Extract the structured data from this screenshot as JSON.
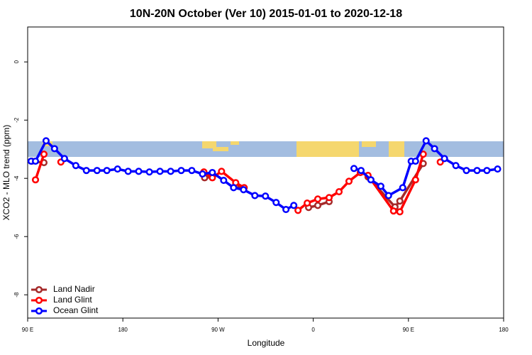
{
  "chart_data": {
    "type": "line",
    "title": "10N-20N October (Ver 10)   2015-01-01 to 2020-12-18",
    "xlabel": "Longitude",
    "ylabel": "XCO2 - MLO trend (ppm)",
    "xlim": [
      90,
      540
    ],
    "ylim": [
      -8.8,
      1.2
    ],
    "xticks": [
      {
        "value": 90,
        "label": "90 E"
      },
      180,
      {
        "value": 270,
        "label": "90 W"
      },
      {
        "value": 360,
        "label": "0"
      },
      {
        "value": 450,
        "label": "90 E"
      },
      {
        "value": 540,
        "label": "180"
      }
    ],
    "yticks": [
      -8,
      -6,
      -4,
      -2,
      0
    ],
    "legend": "bottom-left",
    "series": [
      {
        "name": "Land Nadir",
        "color": "#a52a2a",
        "x": [
          94,
          105.4,
          null,
          257.3,
          264.6,
          null,
          286.7,
          293.4,
          null,
          355.6,
          364.3,
          375,
          null,
          411.8,
          437.3,
          441.9,
          464
        ],
        "values": [
          -3.41,
          -3.46,
          null,
          -3.98,
          -3.95,
          null,
          -4.24,
          -4.34,
          null,
          -5.0,
          -4.93,
          -4.8,
          null,
          -3.95,
          -4.98,
          -4.78,
          -3.49
        ]
      },
      {
        "name": "Land Glint",
        "color": "#ff0000",
        "x": [
          97.4,
          105.4,
          null,
          121.4,
          null,
          256.6,
          264.6,
          273.3,
          286.7,
          294.7,
          null,
          345.6,
          354.3,
          364.3,
          375,
          384.4,
          393.8,
          404.5,
          411.8,
          435.9,
          441.9,
          456.7,
          464,
          null,
          480.1
        ],
        "values": [
          -4.05,
          -3.17,
          null,
          -3.44,
          null,
          -3.78,
          -3.98,
          -3.76,
          -4.15,
          -4.32,
          null,
          -5.1,
          -4.85,
          -4.71,
          -4.66,
          -4.46,
          -4.1,
          -3.8,
          -3.9,
          -5.12,
          -5.15,
          -4.05,
          -3.17,
          null,
          -3.44
        ]
      },
      {
        "name": "Ocean Glint",
        "color": "#0000ff",
        "x": [
          93.3,
          97.4,
          107.4,
          115.4,
          124.8,
          135.5,
          145.5,
          155.6,
          164.9,
          175,
          185,
          195,
          205.1,
          215.1,
          225.2,
          235.2,
          245.2,
          255.3,
          264.6,
          275.3,
          284.7,
          294.1,
          304.8,
          314.8,
          324.9,
          334.2,
          341.6,
          null,
          398.5,
          405.2,
          414.5,
          423.9,
          431.2,
          444.6,
          452.6,
          456.7,
          466.7,
          474.7,
          484.1,
          494.8,
          504.8,
          514.9,
          524.2,
          534.3
        ],
        "values": [
          -3.41,
          -3.41,
          -2.71,
          -2.98,
          -3.32,
          -3.56,
          -3.73,
          -3.73,
          -3.73,
          -3.68,
          -3.76,
          -3.76,
          -3.78,
          -3.76,
          -3.76,
          -3.73,
          -3.73,
          -3.85,
          -3.8,
          -4.07,
          -4.32,
          -4.39,
          -4.59,
          -4.61,
          -4.83,
          -5.07,
          -4.93,
          null,
          -3.66,
          -3.73,
          -4.05,
          -4.27,
          -4.59,
          -4.32,
          -3.41,
          -3.41,
          -2.71,
          -2.98,
          -3.32,
          -3.56,
          -3.73,
          -3.73,
          -3.73,
          -3.68
        ]
      }
    ]
  }
}
